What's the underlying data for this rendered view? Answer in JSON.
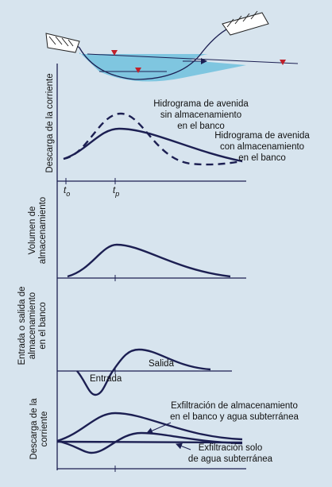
{
  "panel1": {
    "y_label": "Descarga de la corriente",
    "curve_without": [
      "Hidrograma de avenida",
      "sin almacenamiento",
      "en el banco"
    ],
    "curve_with": [
      "Hidrograma de avenida",
      "con almacenamiento",
      "en el banco"
    ],
    "t_o": {
      "symbol": "t",
      "subscript": "o"
    },
    "t_p": {
      "symbol": "t",
      "subscript": "p"
    }
  },
  "panel2": {
    "y_label": [
      "Volumen de",
      "almacenamiento"
    ]
  },
  "panel3": {
    "y_label": [
      "Entrada o salida de",
      "almacenamiento",
      "en el banco"
    ],
    "inflow": "Entrada",
    "outflow": "Salida"
  },
  "panel4": {
    "y_label": [
      "Descarga de la",
      "corriente"
    ],
    "total": [
      "Exfiltración de almacenamiento",
      "en el banco y agua subterránea"
    ],
    "baseflow": [
      "Exfiltración solo",
      "de agua subterránea"
    ]
  }
}
